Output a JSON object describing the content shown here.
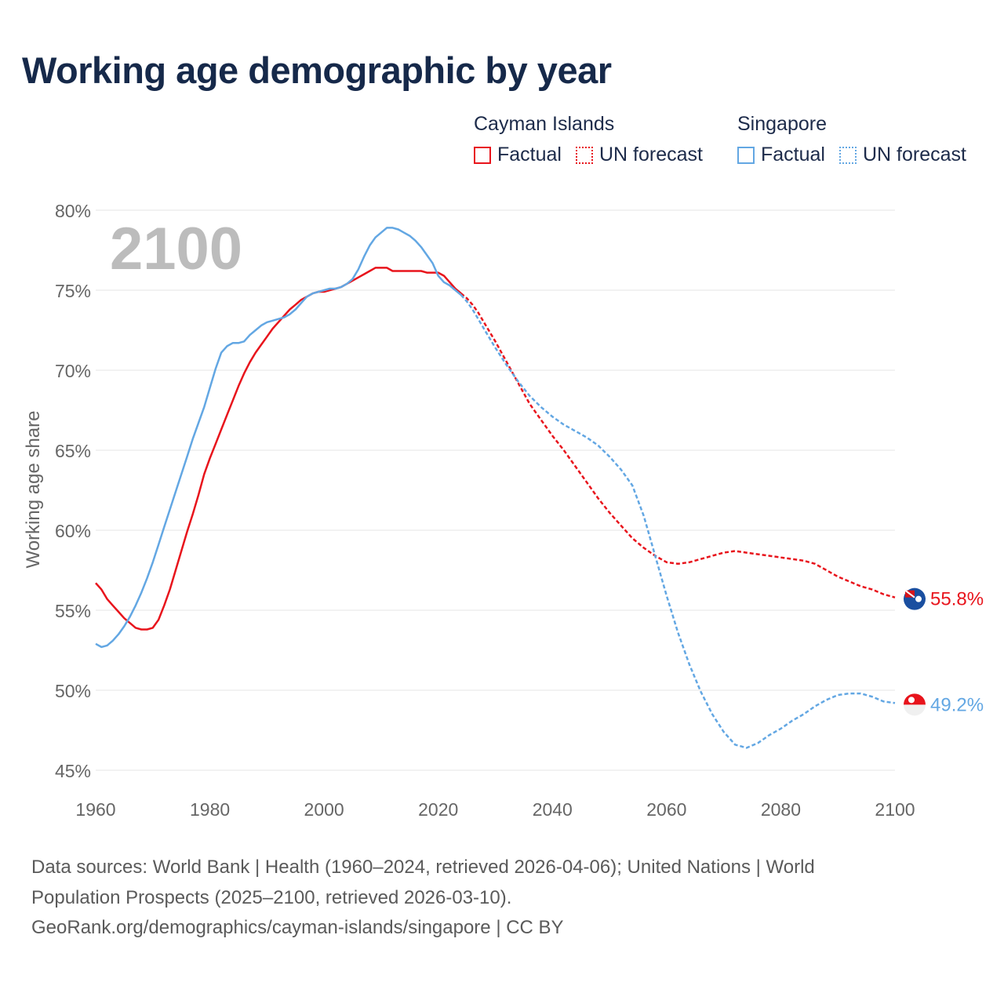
{
  "title": "Working age demographic by year",
  "chart_data": {
    "type": "line",
    "ylabel": "Working age share",
    "ylim": [
      45,
      80
    ],
    "yticks": [
      "45%",
      "50%",
      "55%",
      "60%",
      "65%",
      "70%",
      "75%",
      "80%"
    ],
    "xlim": [
      1960,
      2100
    ],
    "xticks": [
      "1960",
      "1980",
      "2000",
      "2020",
      "2040",
      "2060",
      "2080",
      "2100"
    ],
    "year_overlay": "2100",
    "legend": {
      "groups": [
        {
          "name": "Cayman Islands",
          "factual_label": "Factual",
          "forecast_label": "UN forecast"
        },
        {
          "name": "Singapore",
          "factual_label": "Factual",
          "forecast_label": "UN forecast"
        }
      ]
    },
    "series": [
      {
        "name": "Cayman Islands",
        "color": "#e8141c",
        "end_label": "55.8%",
        "factual": [
          [
            1960,
            56.7
          ],
          [
            1961,
            56.3
          ],
          [
            1962,
            55.7
          ],
          [
            1963,
            55.3
          ],
          [
            1964,
            54.9
          ],
          [
            1965,
            54.5
          ],
          [
            1966,
            54.2
          ],
          [
            1967,
            53.9
          ],
          [
            1968,
            53.8
          ],
          [
            1969,
            53.8
          ],
          [
            1970,
            53.9
          ],
          [
            1971,
            54.4
          ],
          [
            1972,
            55.3
          ],
          [
            1973,
            56.3
          ],
          [
            1974,
            57.5
          ],
          [
            1975,
            58.7
          ],
          [
            1976,
            59.9
          ],
          [
            1977,
            61.0
          ],
          [
            1978,
            62.2
          ],
          [
            1979,
            63.5
          ],
          [
            1980,
            64.5
          ],
          [
            1981,
            65.4
          ],
          [
            1982,
            66.3
          ],
          [
            1983,
            67.2
          ],
          [
            1984,
            68.1
          ],
          [
            1985,
            69.0
          ],
          [
            1986,
            69.8
          ],
          [
            1987,
            70.5
          ],
          [
            1988,
            71.1
          ],
          [
            1989,
            71.6
          ],
          [
            1990,
            72.1
          ],
          [
            1991,
            72.6
          ],
          [
            1992,
            73.0
          ],
          [
            1993,
            73.4
          ],
          [
            1994,
            73.8
          ],
          [
            1995,
            74.1
          ],
          [
            1996,
            74.4
          ],
          [
            1997,
            74.6
          ],
          [
            1998,
            74.8
          ],
          [
            1999,
            74.9
          ],
          [
            2000,
            74.9
          ],
          [
            2001,
            75.0
          ],
          [
            2002,
            75.1
          ],
          [
            2003,
            75.2
          ],
          [
            2004,
            75.4
          ],
          [
            2005,
            75.6
          ],
          [
            2006,
            75.8
          ],
          [
            2007,
            76.0
          ],
          [
            2008,
            76.2
          ],
          [
            2009,
            76.4
          ],
          [
            2010,
            76.4
          ],
          [
            2011,
            76.4
          ],
          [
            2012,
            76.2
          ],
          [
            2013,
            76.2
          ],
          [
            2014,
            76.2
          ],
          [
            2015,
            76.2
          ],
          [
            2016,
            76.2
          ],
          [
            2017,
            76.2
          ],
          [
            2018,
            76.1
          ],
          [
            2019,
            76.1
          ],
          [
            2020,
            76.1
          ],
          [
            2021,
            75.9
          ],
          [
            2022,
            75.5
          ],
          [
            2023,
            75.1
          ],
          [
            2024,
            74.8
          ]
        ],
        "forecast": [
          [
            2024,
            74.8
          ],
          [
            2025,
            74.5
          ],
          [
            2026,
            74.1
          ],
          [
            2027,
            73.6
          ],
          [
            2028,
            73.0
          ],
          [
            2029,
            72.4
          ],
          [
            2030,
            71.8
          ],
          [
            2032,
            70.5
          ],
          [
            2034,
            69.2
          ],
          [
            2036,
            67.9
          ],
          [
            2038,
            66.9
          ],
          [
            2040,
            65.9
          ],
          [
            2042,
            65.0
          ],
          [
            2044,
            64.0
          ],
          [
            2046,
            63.0
          ],
          [
            2048,
            62.0
          ],
          [
            2050,
            61.1
          ],
          [
            2052,
            60.3
          ],
          [
            2054,
            59.5
          ],
          [
            2056,
            58.9
          ],
          [
            2058,
            58.4
          ],
          [
            2060,
            58.0
          ],
          [
            2062,
            57.9
          ],
          [
            2064,
            58.0
          ],
          [
            2066,
            58.2
          ],
          [
            2068,
            58.4
          ],
          [
            2070,
            58.6
          ],
          [
            2072,
            58.7
          ],
          [
            2074,
            58.6
          ],
          [
            2076,
            58.5
          ],
          [
            2078,
            58.4
          ],
          [
            2080,
            58.3
          ],
          [
            2082,
            58.2
          ],
          [
            2084,
            58.1
          ],
          [
            2086,
            57.9
          ],
          [
            2088,
            57.5
          ],
          [
            2090,
            57.1
          ],
          [
            2092,
            56.8
          ],
          [
            2094,
            56.5
          ],
          [
            2096,
            56.3
          ],
          [
            2098,
            56.0
          ],
          [
            2100,
            55.8
          ]
        ]
      },
      {
        "name": "Singapore",
        "color": "#63a7e3",
        "end_label": "49.2%",
        "factual": [
          [
            1960,
            52.9
          ],
          [
            1961,
            52.7
          ],
          [
            1962,
            52.8
          ],
          [
            1963,
            53.1
          ],
          [
            1964,
            53.5
          ],
          [
            1965,
            54.0
          ],
          [
            1966,
            54.6
          ],
          [
            1967,
            55.3
          ],
          [
            1968,
            56.1
          ],
          [
            1969,
            57.0
          ],
          [
            1970,
            58.0
          ],
          [
            1971,
            59.1
          ],
          [
            1972,
            60.2
          ],
          [
            1973,
            61.3
          ],
          [
            1974,
            62.4
          ],
          [
            1975,
            63.5
          ],
          [
            1976,
            64.6
          ],
          [
            1977,
            65.7
          ],
          [
            1978,
            66.7
          ],
          [
            1979,
            67.7
          ],
          [
            1980,
            68.9
          ],
          [
            1981,
            70.1
          ],
          [
            1982,
            71.1
          ],
          [
            1983,
            71.5
          ],
          [
            1984,
            71.7
          ],
          [
            1985,
            71.7
          ],
          [
            1986,
            71.8
          ],
          [
            1987,
            72.2
          ],
          [
            1988,
            72.5
          ],
          [
            1989,
            72.8
          ],
          [
            1990,
            73.0
          ],
          [
            1991,
            73.1
          ],
          [
            1992,
            73.2
          ],
          [
            1993,
            73.3
          ],
          [
            1994,
            73.5
          ],
          [
            1995,
            73.8
          ],
          [
            1996,
            74.2
          ],
          [
            1997,
            74.6
          ],
          [
            1998,
            74.8
          ],
          [
            1999,
            74.9
          ],
          [
            2000,
            75.0
          ],
          [
            2001,
            75.1
          ],
          [
            2002,
            75.1
          ],
          [
            2003,
            75.2
          ],
          [
            2004,
            75.4
          ],
          [
            2005,
            75.7
          ],
          [
            2006,
            76.3
          ],
          [
            2007,
            77.1
          ],
          [
            2008,
            77.8
          ],
          [
            2009,
            78.3
          ],
          [
            2010,
            78.6
          ],
          [
            2011,
            78.9
          ],
          [
            2012,
            78.9
          ],
          [
            2013,
            78.8
          ],
          [
            2014,
            78.6
          ],
          [
            2015,
            78.4
          ],
          [
            2016,
            78.1
          ],
          [
            2017,
            77.7
          ],
          [
            2018,
            77.2
          ],
          [
            2019,
            76.7
          ],
          [
            2020,
            75.9
          ],
          [
            2021,
            75.5
          ],
          [
            2022,
            75.3
          ],
          [
            2023,
            75.0
          ],
          [
            2024,
            74.7
          ]
        ],
        "forecast": [
          [
            2024,
            74.7
          ],
          [
            2025,
            74.3
          ],
          [
            2026,
            73.8
          ],
          [
            2027,
            73.2
          ],
          [
            2028,
            72.6
          ],
          [
            2029,
            72.0
          ],
          [
            2030,
            71.4
          ],
          [
            2032,
            70.3
          ],
          [
            2034,
            69.3
          ],
          [
            2036,
            68.4
          ],
          [
            2038,
            67.7
          ],
          [
            2040,
            67.1
          ],
          [
            2042,
            66.6
          ],
          [
            2044,
            66.2
          ],
          [
            2046,
            65.8
          ],
          [
            2048,
            65.3
          ],
          [
            2050,
            64.6
          ],
          [
            2052,
            63.8
          ],
          [
            2054,
            62.8
          ],
          [
            2056,
            60.9
          ],
          [
            2058,
            58.4
          ],
          [
            2060,
            55.9
          ],
          [
            2062,
            53.6
          ],
          [
            2064,
            51.6
          ],
          [
            2066,
            49.9
          ],
          [
            2068,
            48.5
          ],
          [
            2070,
            47.4
          ],
          [
            2072,
            46.6
          ],
          [
            2074,
            46.4
          ],
          [
            2076,
            46.7
          ],
          [
            2078,
            47.2
          ],
          [
            2080,
            47.6
          ],
          [
            2082,
            48.1
          ],
          [
            2084,
            48.5
          ],
          [
            2086,
            49.0
          ],
          [
            2088,
            49.4
          ],
          [
            2090,
            49.7
          ],
          [
            2092,
            49.8
          ],
          [
            2094,
            49.8
          ],
          [
            2096,
            49.6
          ],
          [
            2098,
            49.3
          ],
          [
            2100,
            49.2
          ]
        ]
      }
    ]
  },
  "footer": {
    "line1": "Data sources: World Bank | Health (1960–2024, retrieved 2026-04-06); United Nations | World",
    "line2": "Population Prospects (2025–2100, retrieved 2026-03-10).",
    "line3": "GeoRank.org/demographics/cayman-islands/singapore | CC BY"
  }
}
